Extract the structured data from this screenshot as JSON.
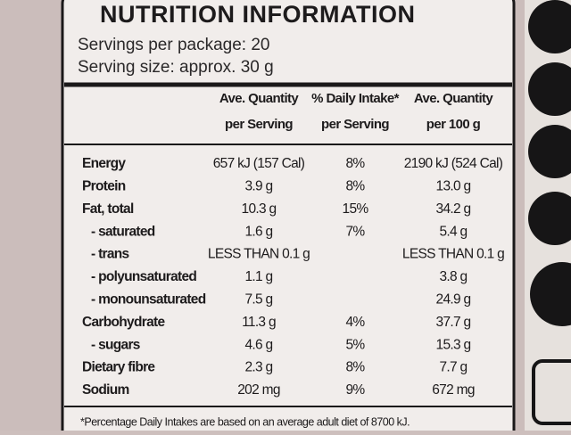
{
  "header": {
    "title": "NUTRITION INFORMATION",
    "servings_per_package": "Servings per package: 20",
    "serving_size": "Serving size: approx. 30 g"
  },
  "table": {
    "columns": [
      [
        "Ave. Quantity",
        "per Serving"
      ],
      [
        "% Daily Intake*",
        "per Serving"
      ],
      [
        "Ave. Quantity",
        "per 100 g"
      ]
    ],
    "rows": [
      {
        "name": "Energy",
        "per_serving": "657 kJ (157 Cal)",
        "daily_intake": "8%",
        "per_100g": "2190 kJ (524 Cal)"
      },
      {
        "name": "Protein",
        "per_serving": "3.9 g",
        "daily_intake": "8%",
        "per_100g": "13.0 g"
      },
      {
        "name": "Fat, total",
        "per_serving": "10.3 g",
        "daily_intake": "15%",
        "per_100g": "34.2 g"
      },
      {
        "name": "- saturated",
        "per_serving": "1.6 g",
        "daily_intake": "7%",
        "per_100g": "5.4 g"
      },
      {
        "name": "- trans",
        "per_serving": "LESS THAN 0.1 g",
        "per_100g": "LESS THAN 0.1 g"
      },
      {
        "name": "- polyunsaturated",
        "per_serving": "1.1 g",
        "per_100g": "3.8 g"
      },
      {
        "name": "- monounsaturated",
        "per_serving": "7.5 g",
        "per_100g": "24.9 g"
      },
      {
        "name": "Carbohydrate",
        "per_serving": "11.3 g",
        "daily_intake": "4%",
        "per_100g": "37.7 g"
      },
      {
        "name": "- sugars",
        "per_serving": "4.6 g",
        "daily_intake": "5%",
        "per_100g": "15.3 g"
      },
      {
        "name": "Dietary fibre",
        "per_serving": "2.3 g",
        "daily_intake": "8%",
        "per_100g": "7.7 g"
      },
      {
        "name": "Sodium",
        "per_serving": "202 mg",
        "daily_intake": "9%",
        "per_100g": "672 mg"
      }
    ]
  },
  "footnote": "*Percentage Daily Intakes are based on an average adult diet of 8700 kJ."
}
